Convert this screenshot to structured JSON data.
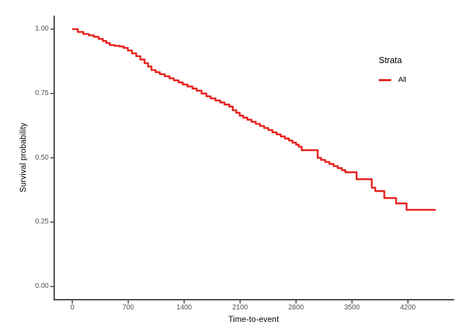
{
  "colors": {
    "curve": "#E7221D",
    "axis": "#2e2e2e",
    "tick_label": "#4d4d4d",
    "text": "#000000",
    "background": "#ffffff"
  },
  "figure": {
    "y_axis": {
      "title": "Survival probability",
      "tick_labels": [
        "1.00",
        "0.75",
        "0.50",
        "0.25",
        "0.00"
      ],
      "tick_values": [
        1.0,
        0.75,
        0.5,
        0.25,
        0.0
      ]
    },
    "x_axis": {
      "title": "Time-to-event",
      "tick_labels": [
        "0",
        "700",
        "1400",
        "2100",
        "2800",
        "3500",
        "4200"
      ],
      "tick_values": [
        0,
        700,
        1400,
        2100,
        2800,
        3500,
        4200
      ]
    },
    "legend": {
      "title": "Strata",
      "entries": [
        {
          "label": "All",
          "color": "#E7221D"
        }
      ]
    }
  },
  "chart_data": {
    "type": "line",
    "subtype": "kaplan-meier-step",
    "title": "",
    "xlabel": "Time-to-event",
    "ylabel": "Survival probability",
    "xlim": [
      0,
      4550
    ],
    "ylim": [
      0.0,
      1.0
    ],
    "grid": false,
    "legend_position": "right",
    "x_ticks": [
      0,
      700,
      1400,
      2100,
      2800,
      3500,
      4200
    ],
    "y_ticks": [
      0.0,
      0.25,
      0.5,
      0.75,
      1.0
    ],
    "series": [
      {
        "name": "All",
        "color": "#E7221D",
        "step": true,
        "points": [
          [
            0,
            1.0
          ],
          [
            70,
            0.989
          ],
          [
            139,
            0.981
          ],
          [
            209,
            0.976
          ],
          [
            270,
            0.97
          ],
          [
            330,
            0.962
          ],
          [
            383,
            0.954
          ],
          [
            426,
            0.946
          ],
          [
            470,
            0.938
          ],
          [
            530,
            0.935
          ],
          [
            591,
            0.933
          ],
          [
            643,
            0.927
          ],
          [
            696,
            0.917
          ],
          [
            748,
            0.906
          ],
          [
            800,
            0.895
          ],
          [
            852,
            0.882
          ],
          [
            904,
            0.868
          ],
          [
            948,
            0.855
          ],
          [
            991,
            0.841
          ],
          [
            1043,
            0.833
          ],
          [
            1096,
            0.825
          ],
          [
            1157,
            0.817
          ],
          [
            1217,
            0.809
          ],
          [
            1270,
            0.801
          ],
          [
            1330,
            0.793
          ],
          [
            1383,
            0.785
          ],
          [
            1443,
            0.777
          ],
          [
            1504,
            0.769
          ],
          [
            1557,
            0.761
          ],
          [
            1617,
            0.75
          ],
          [
            1678,
            0.739
          ],
          [
            1730,
            0.731
          ],
          [
            1791,
            0.723
          ],
          [
            1852,
            0.715
          ],
          [
            1904,
            0.707
          ],
          [
            1965,
            0.699
          ],
          [
            2009,
            0.685
          ],
          [
            2052,
            0.675
          ],
          [
            2096,
            0.664
          ],
          [
            2139,
            0.656
          ],
          [
            2191,
            0.648
          ],
          [
            2243,
            0.64
          ],
          [
            2296,
            0.632
          ],
          [
            2348,
            0.624
          ],
          [
            2400,
            0.616
          ],
          [
            2452,
            0.608
          ],
          [
            2504,
            0.599
          ],
          [
            2557,
            0.591
          ],
          [
            2609,
            0.583
          ],
          [
            2661,
            0.575
          ],
          [
            2713,
            0.567
          ],
          [
            2756,
            0.559
          ],
          [
            2800,
            0.551
          ],
          [
            2835,
            0.543
          ],
          [
            2870,
            0.53
          ],
          [
            3070,
            0.5
          ],
          [
            3113,
            0.492
          ],
          [
            3165,
            0.484
          ],
          [
            3217,
            0.476
          ],
          [
            3270,
            0.468
          ],
          [
            3322,
            0.46
          ],
          [
            3374,
            0.452
          ],
          [
            3417,
            0.444
          ],
          [
            3557,
            0.417
          ],
          [
            3748,
            0.384
          ],
          [
            3791,
            0.371
          ],
          [
            3904,
            0.344
          ],
          [
            4052,
            0.323
          ],
          [
            4183,
            0.298
          ],
          [
            4548,
            0.298
          ]
        ]
      }
    ]
  }
}
